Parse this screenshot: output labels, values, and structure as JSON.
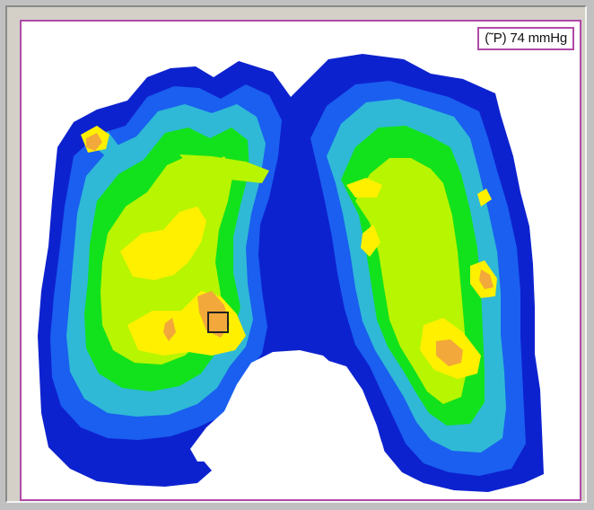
{
  "window": {
    "pressure_readout": "(˜P) 74 mmHg"
  },
  "map": {
    "levels_legend": {
      "level_1": "#0d22cf",
      "level_2": "#1a5ff0",
      "level_3": "#2fb9d6",
      "level_4": "#12e21c",
      "level_5": "#b8f500",
      "level_6": "#fff000",
      "level_7": "#f2a83a"
    },
    "frame_color": "#b04aa8",
    "selection_marker": "cursor-box"
  }
}
